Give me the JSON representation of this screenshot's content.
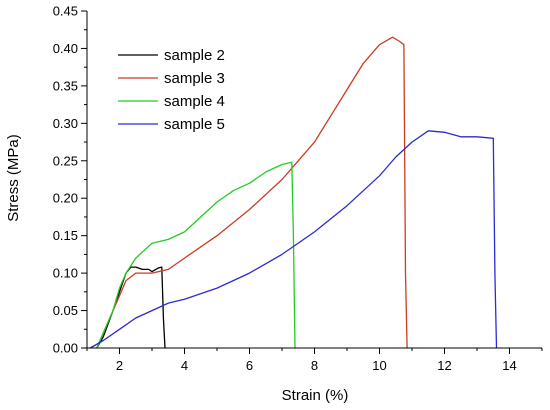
{
  "chart_data": {
    "type": "line",
    "title": "",
    "xlabel": "Strain (%)",
    "ylabel": "Stress (MPa)",
    "xlim": [
      1,
      15
    ],
    "ylim": [
      0,
      0.45
    ],
    "x_ticks": [
      2,
      4,
      6,
      8,
      10,
      12,
      14
    ],
    "x_tick_labels": [
      "2",
      "4",
      "6",
      "8",
      "10",
      "12",
      "14"
    ],
    "y_ticks": [
      0,
      0.05,
      0.1,
      0.15,
      0.2,
      0.25,
      0.3,
      0.35,
      0.4,
      0.45
    ],
    "y_tick_labels": [
      "0.00",
      "0.05",
      "0.10",
      "0.15",
      "0.20",
      "0.25",
      "0.30",
      "0.35",
      "0.40",
      "0.45"
    ],
    "grid": false,
    "legend_position": "top-left",
    "series": [
      {
        "name": "sample 2",
        "color": "#000000",
        "points": [
          [
            1.3,
            0
          ],
          [
            1.5,
            0.015
          ],
          [
            1.8,
            0.05
          ],
          [
            2.0,
            0.075
          ],
          [
            2.2,
            0.1
          ],
          [
            2.35,
            0.108
          ],
          [
            2.5,
            0.108
          ],
          [
            2.7,
            0.105
          ],
          [
            2.9,
            0.105
          ],
          [
            3.0,
            0.102
          ],
          [
            3.2,
            0.107
          ],
          [
            3.3,
            0.108
          ],
          [
            3.35,
            0.04
          ],
          [
            3.4,
            0
          ]
        ]
      },
      {
        "name": "sample 3",
        "color": "#cc3b22",
        "points": [
          [
            1.3,
            0
          ],
          [
            1.6,
            0.03
          ],
          [
            1.9,
            0.06
          ],
          [
            2.2,
            0.09
          ],
          [
            2.5,
            0.1
          ],
          [
            3.0,
            0.1
          ],
          [
            3.5,
            0.105
          ],
          [
            4.0,
            0.12
          ],
          [
            5.0,
            0.15
          ],
          [
            6.0,
            0.185
          ],
          [
            7.0,
            0.225
          ],
          [
            7.5,
            0.25
          ],
          [
            8.0,
            0.275
          ],
          [
            8.5,
            0.31
          ],
          [
            9.0,
            0.345
          ],
          [
            9.5,
            0.38
          ],
          [
            9.8,
            0.395
          ],
          [
            10.0,
            0.405
          ],
          [
            10.4,
            0.415
          ],
          [
            10.6,
            0.41
          ],
          [
            10.75,
            0.405
          ],
          [
            10.8,
            0.1
          ],
          [
            10.85,
            0
          ]
        ]
      },
      {
        "name": "sample 4",
        "color": "#22cc22",
        "points": [
          [
            1.3,
            0
          ],
          [
            1.5,
            0.02
          ],
          [
            1.8,
            0.05
          ],
          [
            2.0,
            0.08
          ],
          [
            2.2,
            0.1
          ],
          [
            2.5,
            0.12
          ],
          [
            3.0,
            0.14
          ],
          [
            3.5,
            0.145
          ],
          [
            4.0,
            0.155
          ],
          [
            4.5,
            0.175
          ],
          [
            5.0,
            0.195
          ],
          [
            5.5,
            0.21
          ],
          [
            6.0,
            0.22
          ],
          [
            6.5,
            0.235
          ],
          [
            7.0,
            0.245
          ],
          [
            7.3,
            0.248
          ],
          [
            7.35,
            0.15
          ],
          [
            7.4,
            0
          ]
        ]
      },
      {
        "name": "sample 5",
        "color": "#2a2ad6",
        "points": [
          [
            1.1,
            0
          ],
          [
            1.5,
            0.01
          ],
          [
            2.0,
            0.025
          ],
          [
            2.5,
            0.04
          ],
          [
            3.0,
            0.05
          ],
          [
            3.5,
            0.06
          ],
          [
            4.0,
            0.065
          ],
          [
            5.0,
            0.08
          ],
          [
            6.0,
            0.1
          ],
          [
            7.0,
            0.125
          ],
          [
            8.0,
            0.155
          ],
          [
            9.0,
            0.19
          ],
          [
            10.0,
            0.23
          ],
          [
            10.5,
            0.255
          ],
          [
            11.0,
            0.275
          ],
          [
            11.5,
            0.29
          ],
          [
            12.0,
            0.288
          ],
          [
            12.5,
            0.282
          ],
          [
            13.0,
            0.282
          ],
          [
            13.5,
            0.28
          ],
          [
            13.55,
            0.1
          ],
          [
            13.6,
            0
          ]
        ]
      }
    ]
  }
}
